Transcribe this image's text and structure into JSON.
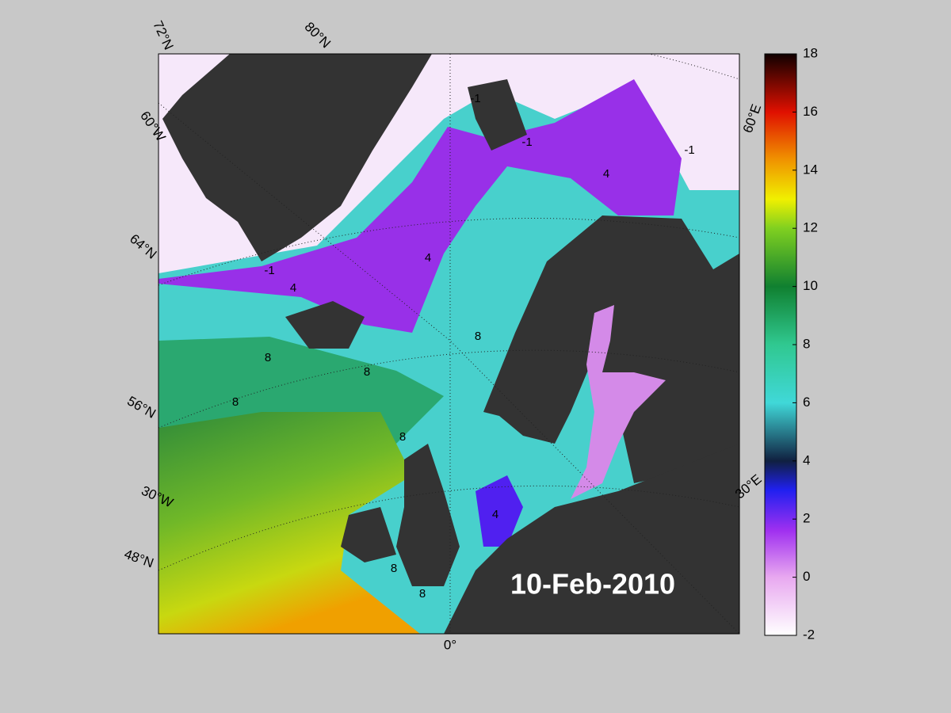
{
  "map": {
    "date": "10-Feb-2010",
    "graticule_labels": [
      "72°N",
      "80°N",
      "60°W",
      "64°N",
      "56°N",
      "30°W",
      "48°N",
      "0°",
      "60°E",
      "30°E"
    ],
    "contour_labels": [
      "-1",
      "-1",
      "-1",
      "-1",
      "4",
      "4",
      "4",
      "4",
      "8",
      "8",
      "8",
      "8",
      "8",
      "8",
      "8"
    ],
    "colorbar": {
      "lim": [
        -2,
        18
      ],
      "ticks": [
        -2,
        0,
        2,
        4,
        6,
        8,
        10,
        12,
        14,
        16,
        18
      ]
    }
  }
}
